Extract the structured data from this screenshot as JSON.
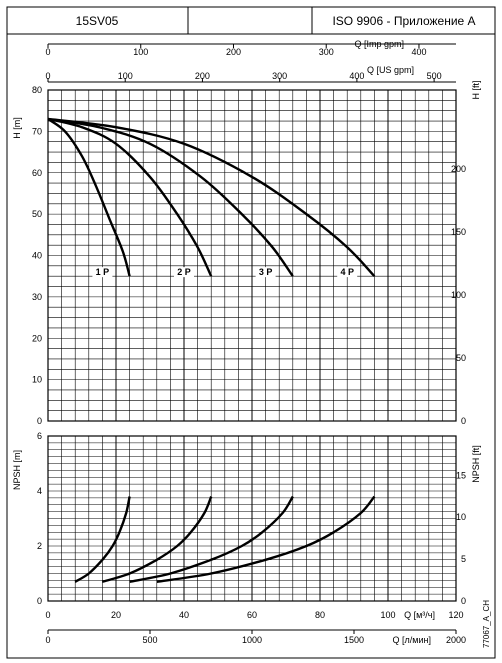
{
  "header": {
    "model": "15SV05",
    "standard": "ISO 9906 - Приложение A"
  },
  "side_code": "77067_A_CH",
  "chart_data": [
    {
      "type": "line",
      "panel": "head",
      "ylabel_left": "H [m]",
      "ylabel_right": "H [ft]",
      "ylim": [
        0,
        80
      ],
      "y_ticks": [
        0,
        10,
        20,
        30,
        40,
        50,
        60,
        70,
        80
      ],
      "y_right_ticks": [
        0,
        50,
        100,
        150,
        200
      ],
      "top_axis_1": {
        "label": "Q [Imp gpm]",
        "ticks": [
          0,
          100,
          200,
          300,
          400
        ]
      },
      "top_axis_2": {
        "label": "Q [US gpm]",
        "ticks": [
          0,
          100,
          200,
          300,
          400,
          500
        ]
      },
      "grid": true,
      "series": [
        {
          "name": "1 P",
          "x": [
            0,
            5,
            10,
            14,
            18,
            22,
            24
          ],
          "y": [
            73,
            70,
            64,
            57,
            49,
            41,
            35
          ]
        },
        {
          "name": "2 P",
          "x": [
            0,
            10,
            20,
            30,
            38,
            44,
            48
          ],
          "y": [
            73,
            71,
            67,
            59,
            50,
            42,
            35
          ]
        },
        {
          "name": "3 P",
          "x": [
            0,
            15,
            30,
            45,
            57,
            66,
            72
          ],
          "y": [
            73,
            71,
            67,
            59,
            50,
            42,
            35
          ]
        },
        {
          "name": "4 P",
          "x": [
            0,
            20,
            40,
            60,
            76,
            88,
            96
          ],
          "y": [
            73,
            71,
            67,
            59,
            50,
            42,
            35
          ]
        }
      ],
      "curve_labels": [
        "1 P",
        "2 P",
        "3 P",
        "4 P"
      ]
    },
    {
      "type": "line",
      "panel": "npsh",
      "ylabel_left": "NPSH [m]",
      "ylabel_right": "NPSH [ft]",
      "ylim": [
        0,
        6
      ],
      "y_ticks": [
        0,
        2,
        4,
        6
      ],
      "y_right_ticks": [
        0,
        5,
        10,
        15
      ],
      "xlabel": "Q [м³/ч]",
      "xlim": [
        0,
        120
      ],
      "x_ticks": [
        0,
        20,
        40,
        60,
        80,
        100,
        120
      ],
      "bottom_axis_2": {
        "label": "Q [л/мин]",
        "ticks": [
          0,
          500,
          1000,
          1500,
          2000
        ]
      },
      "grid": true,
      "series": [
        {
          "x": [
            8,
            12,
            16,
            19,
            21,
            23,
            24
          ],
          "y": [
            0.7,
            1.0,
            1.5,
            2.0,
            2.5,
            3.2,
            3.8
          ]
        },
        {
          "x": [
            16,
            24,
            32,
            38,
            42,
            46,
            48
          ],
          "y": [
            0.7,
            1.0,
            1.5,
            2.0,
            2.5,
            3.2,
            3.8
          ]
        },
        {
          "x": [
            24,
            36,
            48,
            57,
            63,
            69,
            72
          ],
          "y": [
            0.7,
            1.0,
            1.5,
            2.0,
            2.5,
            3.2,
            3.8
          ]
        },
        {
          "x": [
            32,
            48,
            64,
            76,
            84,
            92,
            96
          ],
          "y": [
            0.7,
            1.0,
            1.5,
            2.0,
            2.5,
            3.2,
            3.8
          ]
        }
      ]
    }
  ]
}
